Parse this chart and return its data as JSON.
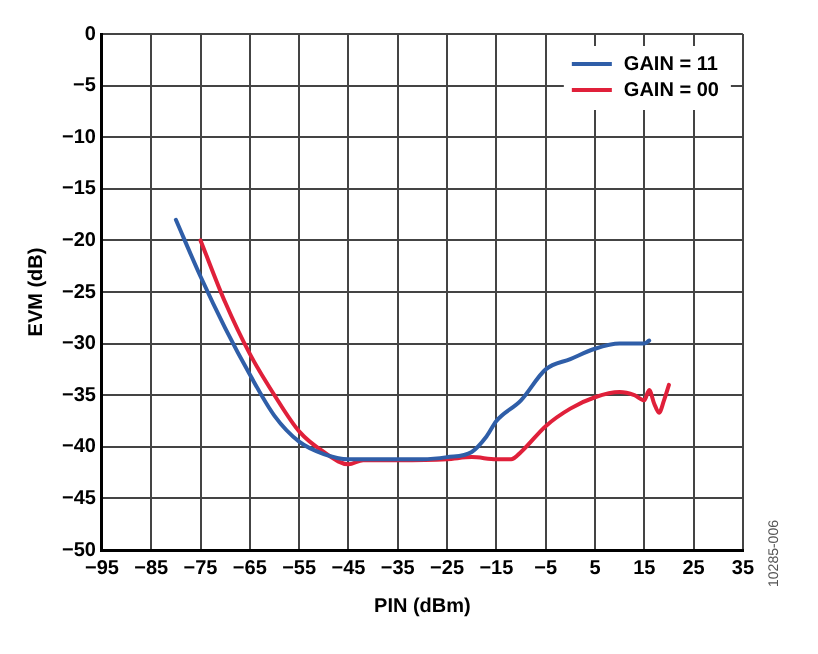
{
  "chart_data": {
    "type": "line",
    "xlabel": "PIN (dBm)",
    "ylabel": "EVM (dB)",
    "xlim": [
      -95,
      35
    ],
    "xticks": [
      -95,
      -85,
      -75,
      -65,
      -55,
      -45,
      -35,
      -25,
      -15,
      -5,
      5,
      15,
      25,
      35
    ],
    "ylim": [
      -50,
      0
    ],
    "yticks": [
      -50,
      -45,
      -40,
      -35,
      -30,
      -25,
      -20,
      -15,
      -10,
      -5,
      0
    ],
    "grid": true,
    "legend": "top right",
    "marker": "none",
    "line_style": "solid",
    "annotations": [
      "10285-006"
    ],
    "series": [
      {
        "name": "GAIN = 11",
        "color": "#2f5ea8",
        "x": [
          -80,
          -75,
          -70,
          -65,
          -60,
          -55,
          -50,
          -45,
          -40,
          -30,
          -25,
          -20,
          -17,
          -15,
          -10,
          -5,
          0,
          5,
          10,
          15,
          16
        ],
        "values": [
          -18,
          -23.5,
          -28.5,
          -33,
          -37,
          -39.5,
          -40.7,
          -41.2,
          -41.2,
          -41.2,
          -41,
          -40.5,
          -39,
          -37.5,
          -35.5,
          -32.5,
          -31.5,
          -30.5,
          -30,
          -30,
          -29.7
        ]
      },
      {
        "name": "GAIN = 00",
        "color": "#e0203a",
        "x": [
          -75,
          -70,
          -65,
          -60,
          -55,
          -50,
          -45,
          -42,
          -35,
          -25,
          -20,
          -15,
          -12,
          -10,
          -5,
          0,
          5,
          10,
          13,
          15,
          16,
          17,
          18,
          19,
          20
        ],
        "values": [
          -20,
          -26,
          -31,
          -35,
          -38.5,
          -40.5,
          -41.7,
          -41.3,
          -41.3,
          -41.2,
          -41,
          -41.2,
          -41.2,
          -40.5,
          -38,
          -36.3,
          -35.2,
          -34.7,
          -35,
          -35.5,
          -34.5,
          -35.8,
          -36.7,
          -35.5,
          -34
        ]
      }
    ]
  }
}
